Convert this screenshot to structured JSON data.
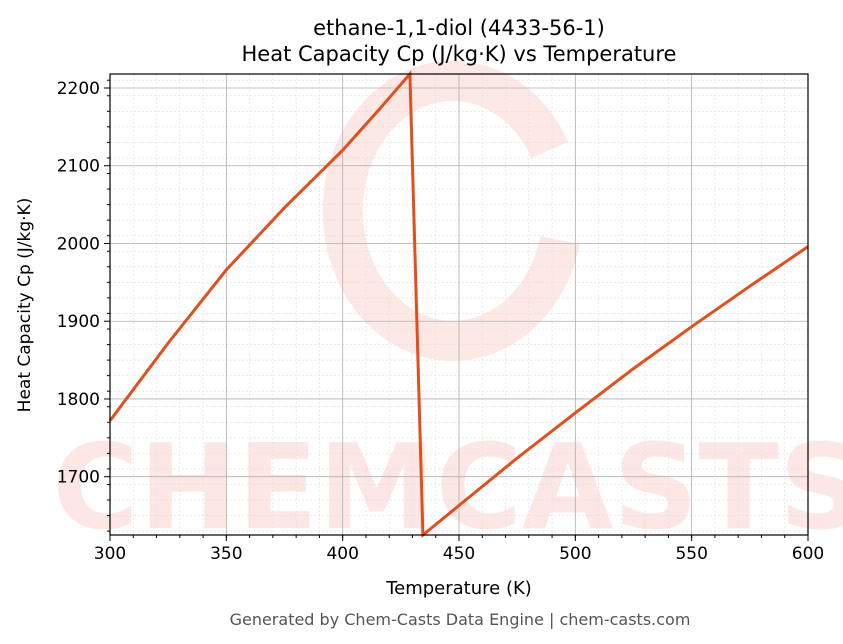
{
  "chart_data": {
    "type": "line",
    "title": "ethane-1,1-diol (4433-56-1)",
    "subtitle": "Heat Capacity Cp (J/kg·K) vs Temperature",
    "xlabel": "Temperature (K)",
    "ylabel": "Heat Capacity Cp (J/kg·K)",
    "xlim": [
      300,
      600
    ],
    "ylim": [
      1625,
      2218
    ],
    "xticks": [
      300,
      350,
      400,
      450,
      500,
      550,
      600
    ],
    "yticks": [
      1700,
      1800,
      1900,
      2000,
      2100,
      2200
    ],
    "grid": true,
    "line_color": "#e0501e",
    "series": [
      {
        "x": [
          300,
          325,
          350,
          375,
          400,
          415,
          428.9,
          434.5,
          450,
          475,
          500,
          525,
          550,
          575,
          600
        ],
        "y": [
          1772,
          1872,
          1966,
          2046,
          2120,
          2170,
          2218,
          1625,
          1663,
          1724,
          1782,
          1839,
          1893,
          1945,
          1996
        ]
      }
    ],
    "watermark": "CHEMCASTS",
    "footer": "Generated by Chem-Casts Data Engine | chem-casts.com"
  }
}
